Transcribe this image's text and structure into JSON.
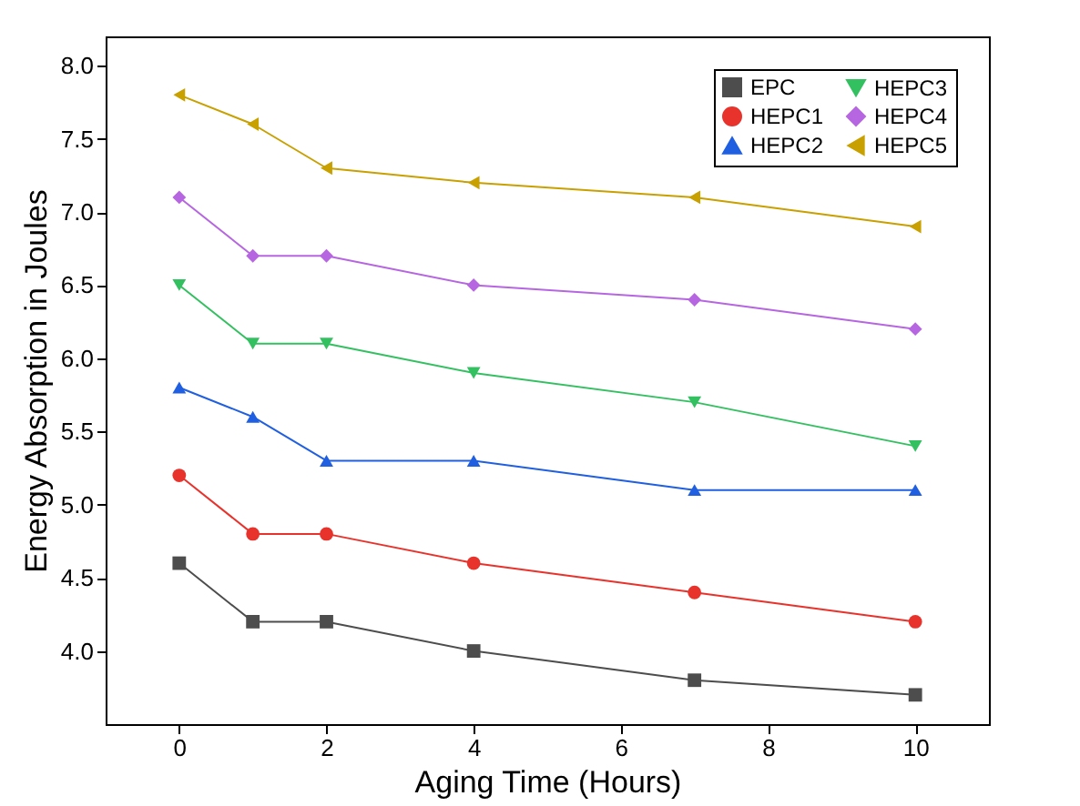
{
  "chart_data": {
    "type": "line",
    "xlabel": "Aging Time (Hours)",
    "ylabel": "Energy Absorption in Joules",
    "x": [
      0,
      1,
      2,
      4,
      7,
      10
    ],
    "series": [
      {
        "name": "EPC",
        "color": "#4d4d4d",
        "marker": "square",
        "values": [
          4.6,
          4.2,
          4.2,
          4.0,
          3.8,
          3.7
        ]
      },
      {
        "name": "HEPC1",
        "color": "#e8332c",
        "marker": "circle",
        "values": [
          5.2,
          4.8,
          4.8,
          4.6,
          4.4,
          4.2
        ]
      },
      {
        "name": "HEPC2",
        "color": "#1f5fe0",
        "marker": "triangle",
        "values": [
          5.8,
          5.6,
          5.3,
          5.3,
          5.1,
          5.1
        ]
      },
      {
        "name": "HEPC3",
        "color": "#33c060",
        "marker": "triangle-down",
        "values": [
          6.5,
          6.1,
          6.1,
          5.9,
          5.7,
          5.4
        ]
      },
      {
        "name": "HEPC4",
        "color": "#b666e0",
        "marker": "diamond",
        "values": [
          7.1,
          6.7,
          6.7,
          6.5,
          6.4,
          6.2
        ]
      },
      {
        "name": "HEPC5",
        "color": "#c8a000",
        "marker": "triangle-left",
        "values": [
          7.8,
          7.6,
          7.3,
          7.2,
          7.1,
          6.9
        ]
      }
    ],
    "xlim": [
      -1,
      11
    ],
    "xticks": [
      0,
      2,
      4,
      6,
      8,
      10
    ],
    "ylim": [
      3.5,
      8.2
    ],
    "yticks": [
      {
        "value": 4,
        "label": "4.0"
      },
      4.5,
      {
        "value": 5,
        "label": "5.0"
      },
      5.5,
      {
        "value": 6,
        "label": "6.0"
      },
      6.5,
      {
        "value": 7,
        "label": "7.0"
      },
      7.5,
      {
        "value": 8,
        "label": "8.0"
      }
    ],
    "grid": false,
    "legend": "top right",
    "line_style": "solid"
  }
}
